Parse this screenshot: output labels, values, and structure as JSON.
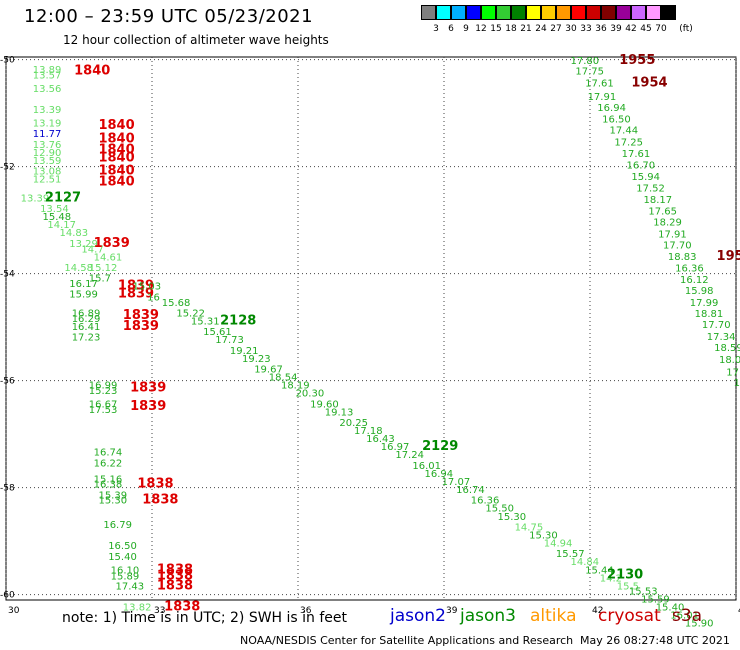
{
  "header": {
    "title": "12:00 – 23:59 UTC 05/23/2021",
    "subtitle": "12 hour collection of altimeter wave heights"
  },
  "colorbar": {
    "labels": [
      "3",
      "6",
      "9",
      "12",
      "15",
      "18",
      "21",
      "24",
      "27",
      "30",
      "33",
      "36",
      "39",
      "42",
      "45",
      "70"
    ],
    "unit": "(ft)",
    "colors": [
      "#7f7f7f",
      "#00ffff",
      "#00b0ff",
      "#0000ff",
      "#00ff00",
      "#33cc33",
      "#008000",
      "#ffff00",
      "#ffcc00",
      "#ff9900",
      "#ff0000",
      "#cc0000",
      "#800000",
      "#990099",
      "#cc66ff",
      "#ff99ff",
      "#000000"
    ]
  },
  "footer": {
    "note": "note: 1) Time is in UTC; 2) SWH is in feet",
    "legend": [
      {
        "label": "jason2",
        "color": "#0000cc"
      },
      {
        "label": "jason3",
        "color": "#008800"
      },
      {
        "label": "altika",
        "color": "#ff9900"
      },
      {
        "label": "cryosat",
        "color": "#cc0000"
      },
      {
        "label": "s3a",
        "color": "#880000"
      }
    ],
    "credit": "NOAA/NESDIS Center for Satellite Applications and Research",
    "timestamp": "May 26 08:27:48 UTC 2021"
  },
  "chart_data": {
    "type": "scatter",
    "xlim": [
      30,
      45
    ],
    "ylim": [
      -60.1,
      -49.95
    ],
    "xticks": [
      30,
      33,
      36,
      39,
      42,
      45
    ],
    "yticks": [
      -50,
      -52,
      -54,
      -56,
      -58,
      -60
    ],
    "grid": true,
    "labels": [
      {
        "x": 30.55,
        "y": -50.25,
        "t": "13.89",
        "c": "#66dd66"
      },
      {
        "x": 30.55,
        "y": -50.35,
        "t": "13.57",
        "c": "#66dd66"
      },
      {
        "x": 30.55,
        "y": -50.6,
        "t": "13.56",
        "c": "#66dd66"
      },
      {
        "x": 31.4,
        "y": -50.28,
        "t": "1840",
        "c": "#dd0000",
        "big": true
      },
      {
        "x": 30.55,
        "y": -51.0,
        "t": "13.39",
        "c": "#66dd66"
      },
      {
        "x": 30.55,
        "y": -51.25,
        "t": "13.19",
        "c": "#66dd66"
      },
      {
        "x": 30.55,
        "y": -51.45,
        "t": "11.77",
        "c": "#0000cc"
      },
      {
        "x": 30.55,
        "y": -51.65,
        "t": "13.76",
        "c": "#66dd66"
      },
      {
        "x": 30.55,
        "y": -51.8,
        "t": "12.90",
        "c": "#66dd66"
      },
      {
        "x": 30.55,
        "y": -51.95,
        "t": "13.59",
        "c": "#66dd66"
      },
      {
        "x": 30.55,
        "y": -52.15,
        "t": "13.08",
        "c": "#66dd66"
      },
      {
        "x": 30.55,
        "y": -52.3,
        "t": "12.51",
        "c": "#66dd66"
      },
      {
        "x": 31.9,
        "y": -51.3,
        "t": "1840",
        "c": "#dd0000",
        "big": true
      },
      {
        "x": 31.9,
        "y": -51.55,
        "t": "1840",
        "c": "#dd0000",
        "big": true
      },
      {
        "x": 31.9,
        "y": -51.75,
        "t": "1840",
        "c": "#dd0000",
        "big": true
      },
      {
        "x": 31.9,
        "y": -51.9,
        "t": "1840",
        "c": "#dd0000",
        "big": true
      },
      {
        "x": 31.9,
        "y": -52.15,
        "t": "1840",
        "c": "#dd0000",
        "big": true
      },
      {
        "x": 31.9,
        "y": -52.35,
        "t": "1840",
        "c": "#dd0000",
        "big": true
      },
      {
        "x": 30.3,
        "y": -52.65,
        "t": "13.39",
        "c": "#66dd66"
      },
      {
        "x": 30.8,
        "y": -52.65,
        "t": "2127",
        "c": "#008800",
        "big": true
      },
      {
        "x": 30.7,
        "y": -52.85,
        "t": "13.54",
        "c": "#66dd66"
      },
      {
        "x": 30.75,
        "y": -53.0,
        "t": "15.48",
        "c": "#22aa22"
      },
      {
        "x": 30.85,
        "y": -53.15,
        "t": "14.17",
        "c": "#66dd66"
      },
      {
        "x": 31.1,
        "y": -53.3,
        "t": "14.83",
        "c": "#66dd66"
      },
      {
        "x": 31.3,
        "y": -53.5,
        "t": "13.29",
        "c": "#66dd66"
      },
      {
        "x": 31.55,
        "y": -53.6,
        "t": "14.7",
        "c": "#66dd66"
      },
      {
        "x": 31.8,
        "y": -53.5,
        "t": "1839",
        "c": "#dd0000",
        "big": true
      },
      {
        "x": 31.8,
        "y": -53.75,
        "t": "14.61",
        "c": "#66dd66"
      },
      {
        "x": 31.2,
        "y": -53.95,
        "t": "14.58",
        "c": "#66dd66"
      },
      {
        "x": 31.7,
        "y": -53.95,
        "t": "15.12",
        "c": "#66dd66"
      },
      {
        "x": 31.7,
        "y": -54.15,
        "t": "15.7",
        "c": "#22aa22"
      },
      {
        "x": 31.3,
        "y": -54.25,
        "t": "16.17",
        "c": "#22aa22"
      },
      {
        "x": 31.3,
        "y": -54.45,
        "t": "15.99",
        "c": "#22aa22"
      },
      {
        "x": 32.3,
        "y": -54.3,
        "t": "1839",
        "c": "#dd0000",
        "big": true
      },
      {
        "x": 32.3,
        "y": -54.45,
        "t": "1839",
        "c": "#dd0000",
        "big": true
      },
      {
        "x": 32.6,
        "y": -54.3,
        "t": "15.03",
        "c": "#22aa22"
      },
      {
        "x": 32.9,
        "y": -54.5,
        "t": "16",
        "c": "#22aa22"
      },
      {
        "x": 33.2,
        "y": -54.6,
        "t": "15.68",
        "c": "#22aa22"
      },
      {
        "x": 33.5,
        "y": -54.8,
        "t": "15.22",
        "c": "#22aa22"
      },
      {
        "x": 31.35,
        "y": -54.8,
        "t": "16.89",
        "c": "#22aa22"
      },
      {
        "x": 31.35,
        "y": -54.9,
        "t": "16.29",
        "c": "#22aa22"
      },
      {
        "x": 31.35,
        "y": -55.05,
        "t": "16.41",
        "c": "#22aa22"
      },
      {
        "x": 31.35,
        "y": -55.25,
        "t": "17.23",
        "c": "#22aa22"
      },
      {
        "x": 32.4,
        "y": -54.85,
        "t": "1839",
        "c": "#dd0000",
        "big": true
      },
      {
        "x": 32.4,
        "y": -55.05,
        "t": "1839",
        "c": "#dd0000",
        "big": true
      },
      {
        "x": 33.8,
        "y": -54.95,
        "t": "15.31",
        "c": "#22aa22"
      },
      {
        "x": 34.4,
        "y": -54.95,
        "t": "2128",
        "c": "#008800",
        "big": true
      },
      {
        "x": 34.05,
        "y": -55.15,
        "t": "15.61",
        "c": "#22aa22"
      },
      {
        "x": 34.3,
        "y": -55.3,
        "t": "17.73",
        "c": "#22aa22"
      },
      {
        "x": 34.6,
        "y": -55.5,
        "t": "19.21",
        "c": "#22aa22"
      },
      {
        "x": 34.85,
        "y": -55.65,
        "t": "19.23",
        "c": "#22aa22"
      },
      {
        "x": 35.1,
        "y": -55.85,
        "t": "19.67",
        "c": "#22aa22"
      },
      {
        "x": 35.4,
        "y": -56.0,
        "t": "18.54",
        "c": "#22aa22"
      },
      {
        "x": 35.65,
        "y": -56.15,
        "t": "18.19",
        "c": "#22aa22"
      },
      {
        "x": 35.95,
        "y": -56.3,
        "t": "20.30",
        "c": "#22aa22"
      },
      {
        "x": 36.25,
        "y": -56.5,
        "t": "19.60",
        "c": "#22aa22"
      },
      {
        "x": 36.55,
        "y": -56.65,
        "t": "19.13",
        "c": "#22aa22"
      },
      {
        "x": 36.85,
        "y": -56.85,
        "t": "20.25",
        "c": "#22aa22"
      },
      {
        "x": 37.15,
        "y": -57.0,
        "t": "17.18",
        "c": "#22aa22"
      },
      {
        "x": 37.4,
        "y": -57.15,
        "t": "16.43",
        "c": "#22aa22"
      },
      {
        "x": 37.7,
        "y": -57.3,
        "t": "16.97",
        "c": "#22aa22"
      },
      {
        "x": 38.0,
        "y": -57.45,
        "t": "17.24",
        "c": "#22aa22"
      },
      {
        "x": 38.55,
        "y": -57.3,
        "t": "2129",
        "c": "#008800",
        "big": true
      },
      {
        "x": 38.35,
        "y": -57.65,
        "t": "16.01",
        "c": "#22aa22"
      },
      {
        "x": 38.6,
        "y": -57.8,
        "t": "16.94",
        "c": "#22aa22"
      },
      {
        "x": 38.95,
        "y": -57.95,
        "t": "17.07",
        "c": "#22aa22"
      },
      {
        "x": 39.25,
        "y": -58.1,
        "t": "16.74",
        "c": "#22aa22"
      },
      {
        "x": 39.55,
        "y": -58.3,
        "t": "16.36",
        "c": "#22aa22"
      },
      {
        "x": 39.85,
        "y": -58.45,
        "t": "15.50",
        "c": "#22aa22"
      },
      {
        "x": 40.1,
        "y": -58.6,
        "t": "15.30",
        "c": "#22aa22"
      },
      {
        "x": 40.45,
        "y": -58.8,
        "t": "14.75",
        "c": "#66dd66"
      },
      {
        "x": 40.75,
        "y": -58.95,
        "t": "15.30",
        "c": "#22aa22"
      },
      {
        "x": 41.05,
        "y": -59.1,
        "t": "14.94",
        "c": "#66dd66"
      },
      {
        "x": 41.3,
        "y": -59.3,
        "t": "15.57",
        "c": "#22aa22"
      },
      {
        "x": 41.6,
        "y": -59.45,
        "t": "14.84",
        "c": "#66dd66"
      },
      {
        "x": 41.9,
        "y": -59.6,
        "t": "15.44",
        "c": "#22aa22"
      },
      {
        "x": 42.2,
        "y": -59.75,
        "t": "14.2",
        "c": "#66dd66"
      },
      {
        "x": 42.55,
        "y": -59.9,
        "t": "15.5",
        "c": "#66dd66"
      },
      {
        "x": 42.35,
        "y": -59.7,
        "t": "2130",
        "c": "#008800",
        "big": true
      },
      {
        "x": 42.8,
        "y": -60.0,
        "t": "15.53",
        "c": "#22aa22"
      },
      {
        "x": 43.05,
        "y": -60.15,
        "t": "15.59",
        "c": "#22aa22"
      },
      {
        "x": 43.35,
        "y": -60.3,
        "t": "15.40",
        "c": "#22aa22"
      },
      {
        "x": 43.65,
        "y": -60.45,
        "t": "16.01",
        "c": "#22aa22"
      },
      {
        "x": 43.95,
        "y": -60.6,
        "t": "15.90",
        "c": "#22aa22"
      },
      {
        "x": 31.7,
        "y": -56.15,
        "t": "16.99",
        "c": "#22aa22"
      },
      {
        "x": 31.7,
        "y": -56.25,
        "t": "15.23",
        "c": "#22aa22"
      },
      {
        "x": 32.55,
        "y": -56.2,
        "t": "1839",
        "c": "#dd0000",
        "big": true
      },
      {
        "x": 31.7,
        "y": -56.5,
        "t": "16.67",
        "c": "#22aa22"
      },
      {
        "x": 31.7,
        "y": -56.6,
        "t": "17.53",
        "c": "#22aa22"
      },
      {
        "x": 32.55,
        "y": -56.55,
        "t": "1839",
        "c": "#dd0000",
        "big": true
      },
      {
        "x": 31.8,
        "y": -57.4,
        "t": "16.74",
        "c": "#22aa22"
      },
      {
        "x": 31.8,
        "y": -57.6,
        "t": "16.22",
        "c": "#22aa22"
      },
      {
        "x": 31.8,
        "y": -57.9,
        "t": "15.16",
        "c": "#22aa22"
      },
      {
        "x": 31.8,
        "y": -58.0,
        "t": "16.38",
        "c": "#22aa22"
      },
      {
        "x": 32.7,
        "y": -58.0,
        "t": "1838",
        "c": "#dd0000",
        "big": true
      },
      {
        "x": 31.9,
        "y": -58.2,
        "t": "15.39",
        "c": "#22aa22"
      },
      {
        "x": 31.9,
        "y": -58.3,
        "t": "15.30",
        "c": "#22aa22"
      },
      {
        "x": 32.8,
        "y": -58.3,
        "t": "1838",
        "c": "#dd0000",
        "big": true
      },
      {
        "x": 32.0,
        "y": -58.75,
        "t": "16.79",
        "c": "#22aa22"
      },
      {
        "x": 32.1,
        "y": -59.15,
        "t": "16.50",
        "c": "#22aa22"
      },
      {
        "x": 32.1,
        "y": -59.35,
        "t": "15.40",
        "c": "#22aa22"
      },
      {
        "x": 32.15,
        "y": -59.6,
        "t": "16.10",
        "c": "#22aa22"
      },
      {
        "x": 32.15,
        "y": -59.72,
        "t": "15.89",
        "c": "#22aa22"
      },
      {
        "x": 32.25,
        "y": -59.9,
        "t": "17.43",
        "c": "#22aa22"
      },
      {
        "x": 33.1,
        "y": -59.6,
        "t": "1838",
        "c": "#dd0000",
        "big": true
      },
      {
        "x": 33.1,
        "y": -59.72,
        "t": "1838",
        "c": "#dd0000",
        "big": true
      },
      {
        "x": 33.1,
        "y": -59.9,
        "t": "1838",
        "c": "#dd0000",
        "big": true
      },
      {
        "x": 32.4,
        "y": -60.3,
        "t": "13.82",
        "c": "#66dd66"
      },
      {
        "x": 33.25,
        "y": -60.3,
        "t": "1838",
        "c": "#dd0000",
        "big": true
      },
      {
        "x": 41.6,
        "y": -50.08,
        "t": "17.80",
        "c": "#22aa22"
      },
      {
        "x": 42.6,
        "y": -50.08,
        "t": "1955",
        "c": "#880000",
        "big": true
      },
      {
        "x": 41.7,
        "y": -50.28,
        "t": "17.75",
        "c": "#22aa22"
      },
      {
        "x": 41.9,
        "y": -50.5,
        "t": "17.61",
        "c": "#22aa22"
      },
      {
        "x": 42.85,
        "y": -50.5,
        "t": "1954",
        "c": "#880000",
        "big": true
      },
      {
        "x": 41.95,
        "y": -50.75,
        "t": "17.91",
        "c": "#22aa22"
      },
      {
        "x": 42.15,
        "y": -50.96,
        "t": "16.94",
        "c": "#22aa22"
      },
      {
        "x": 42.25,
        "y": -51.17,
        "t": "16.50",
        "c": "#22aa22"
      },
      {
        "x": 42.4,
        "y": -51.38,
        "t": "17.44",
        "c": "#22aa22"
      },
      {
        "x": 42.5,
        "y": -51.6,
        "t": "17.25",
        "c": "#22aa22"
      },
      {
        "x": 42.65,
        "y": -51.82,
        "t": "17.61",
        "c": "#22aa22"
      },
      {
        "x": 42.75,
        "y": -52.03,
        "t": "16.70",
        "c": "#22aa22"
      },
      {
        "x": 42.85,
        "y": -52.25,
        "t": "15.94",
        "c": "#22aa22"
      },
      {
        "x": 42.95,
        "y": -52.46,
        "t": "17.52",
        "c": "#22aa22"
      },
      {
        "x": 43.1,
        "y": -52.68,
        "t": "18.17",
        "c": "#22aa22"
      },
      {
        "x": 43.2,
        "y": -52.89,
        "t": "17.65",
        "c": "#22aa22"
      },
      {
        "x": 43.3,
        "y": -53.1,
        "t": "18.29",
        "c": "#22aa22"
      },
      {
        "x": 43.4,
        "y": -53.32,
        "t": "17.91",
        "c": "#22aa22"
      },
      {
        "x": 43.5,
        "y": -53.53,
        "t": "17.70",
        "c": "#22aa22"
      },
      {
        "x": 43.6,
        "y": -53.74,
        "t": "18.83",
        "c": "#22aa22"
      },
      {
        "x": 44.6,
        "y": -53.74,
        "t": "1953",
        "c": "#880000",
        "big": true
      },
      {
        "x": 43.75,
        "y": -53.96,
        "t": "16.36",
        "c": "#22aa22"
      },
      {
        "x": 43.85,
        "y": -54.17,
        "t": "16.12",
        "c": "#22aa22"
      },
      {
        "x": 43.95,
        "y": -54.38,
        "t": "15.98",
        "c": "#22aa22"
      },
      {
        "x": 44.05,
        "y": -54.6,
        "t": "17.99",
        "c": "#22aa22"
      },
      {
        "x": 44.15,
        "y": -54.81,
        "t": "18.81",
        "c": "#22aa22"
      },
      {
        "x": 44.3,
        "y": -55.02,
        "t": "17.70",
        "c": "#22aa22"
      },
      {
        "x": 44.4,
        "y": -55.24,
        "t": "17.34",
        "c": "#22aa22"
      },
      {
        "x": 44.55,
        "y": -55.45,
        "t": "18.59",
        "c": "#22aa22"
      },
      {
        "x": 44.65,
        "y": -55.67,
        "t": "18.0",
        "c": "#22aa22"
      },
      {
        "x": 44.8,
        "y": -55.9,
        "t": "17.",
        "c": "#22aa22"
      },
      {
        "x": 44.95,
        "y": -56.1,
        "t": "16",
        "c": "#22aa22"
      }
    ]
  }
}
